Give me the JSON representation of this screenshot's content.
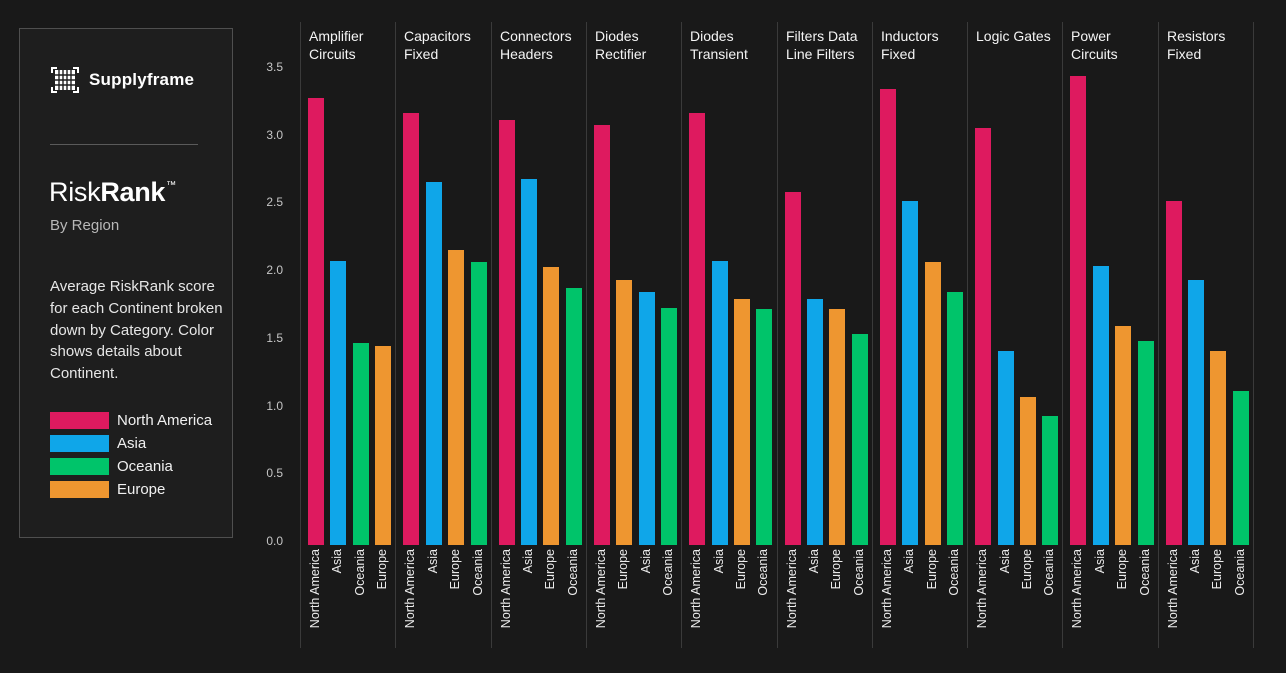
{
  "branding": {
    "logo_text": "Supplyframe",
    "title_regular": "Risk",
    "title_bold": "Rank",
    "title_tm": "™",
    "subtitle": "By Region",
    "description": "Average RiskRank score for each Continent broken down by Category. Color shows details about Continent."
  },
  "legend": {
    "items": [
      {
        "label": "North America",
        "color": "#de1a5f"
      },
      {
        "label": "Asia",
        "color": "#0fa6e9"
      },
      {
        "label": "Oceania",
        "color": "#00c46a"
      },
      {
        "label": "Europe",
        "color": "#ee9630"
      }
    ]
  },
  "chart_data": {
    "type": "bar",
    "title": "RiskRank By Region",
    "xlabel": "",
    "ylabel": "",
    "ylim": [
      0,
      3.5
    ],
    "yticks": [
      0.0,
      0.5,
      1.0,
      1.5,
      2.0,
      2.5,
      3.0,
      3.5
    ],
    "grid": false,
    "legend_position": "left",
    "groups": [
      {
        "category": "Amplifier Circuits",
        "bars": [
          {
            "region": "North America",
            "value": 3.3
          },
          {
            "region": "Asia",
            "value": 2.1
          },
          {
            "region": "Oceania",
            "value": 1.49
          },
          {
            "region": "Europe",
            "value": 1.47
          }
        ]
      },
      {
        "category": "Capacitors Fixed",
        "bars": [
          {
            "region": "North America",
            "value": 3.19
          },
          {
            "region": "Asia",
            "value": 2.68
          },
          {
            "region": "Europe",
            "value": 2.18
          },
          {
            "region": "Oceania",
            "value": 2.09
          }
        ]
      },
      {
        "category": "Connectors Headers",
        "bars": [
          {
            "region": "North America",
            "value": 3.14
          },
          {
            "region": "Asia",
            "value": 2.7
          },
          {
            "region": "Europe",
            "value": 2.05
          },
          {
            "region": "Oceania",
            "value": 1.9
          }
        ]
      },
      {
        "category": "Diodes Rectifier",
        "bars": [
          {
            "region": "North America",
            "value": 3.1
          },
          {
            "region": "Europe",
            "value": 1.96
          },
          {
            "region": "Asia",
            "value": 1.87
          },
          {
            "region": "Oceania",
            "value": 1.75
          }
        ]
      },
      {
        "category": "Diodes Transient",
        "bars": [
          {
            "region": "North America",
            "value": 3.19
          },
          {
            "region": "Asia",
            "value": 2.1
          },
          {
            "region": "Europe",
            "value": 1.82
          },
          {
            "region": "Oceania",
            "value": 1.74
          }
        ]
      },
      {
        "category": "Filters Data Line Filters",
        "bars": [
          {
            "region": "North America",
            "value": 2.61
          },
          {
            "region": "Asia",
            "value": 1.82
          },
          {
            "region": "Europe",
            "value": 1.74
          },
          {
            "region": "Oceania",
            "value": 1.56
          }
        ]
      },
      {
        "category": "Inductors Fixed",
        "bars": [
          {
            "region": "North America",
            "value": 3.37
          },
          {
            "region": "Asia",
            "value": 2.54
          },
          {
            "region": "Europe",
            "value": 2.09
          },
          {
            "region": "Oceania",
            "value": 1.87
          }
        ]
      },
      {
        "category": "Logic Gates",
        "bars": [
          {
            "region": "North America",
            "value": 3.08
          },
          {
            "region": "Asia",
            "value": 1.43
          },
          {
            "region": "Europe",
            "value": 1.09
          },
          {
            "region": "Oceania",
            "value": 0.95
          }
        ]
      },
      {
        "category": "Power Circuits",
        "bars": [
          {
            "region": "North America",
            "value": 3.46
          },
          {
            "region": "Asia",
            "value": 2.06
          },
          {
            "region": "Europe",
            "value": 1.62
          },
          {
            "region": "Oceania",
            "value": 1.51
          }
        ]
      },
      {
        "category": "Resistors Fixed",
        "bars": [
          {
            "region": "North America",
            "value": 2.54
          },
          {
            "region": "Asia",
            "value": 1.96
          },
          {
            "region": "Europe",
            "value": 1.43
          },
          {
            "region": "Oceania",
            "value": 1.14
          }
        ]
      }
    ]
  }
}
